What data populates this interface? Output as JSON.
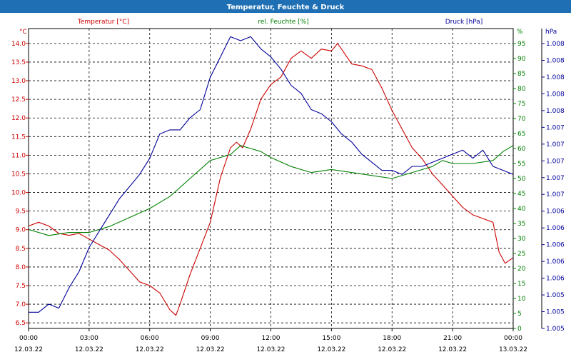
{
  "window": {
    "title": "Temperatur, Feuchte & Druck"
  },
  "colors": {
    "temperature": "#cc0000",
    "humidity": "#008000",
    "pressure": "#000099",
    "title_bar": "#1f6fb4"
  },
  "chart_data": {
    "type": "line",
    "title": "Temperatur, Feuchte & Druck",
    "grid": true,
    "x_range": [
      "12.03.22 00:00",
      "13.03.22 00:00"
    ],
    "x_ticks": [
      {
        "time": "00:00",
        "date": "12.03.22"
      },
      {
        "time": "03:00",
        "date": "12.03.22"
      },
      {
        "time": "06:00",
        "date": "12.03.22"
      },
      {
        "time": "09:00",
        "date": "12.03.22"
      },
      {
        "time": "12:00",
        "date": "12.03.22"
      },
      {
        "time": "15:00",
        "date": "12.03.22"
      },
      {
        "time": "18:00",
        "date": "12.03.22"
      },
      {
        "time": "21:00",
        "date": "12.03.22"
      },
      {
        "time": "00:00",
        "date": "13.03.22"
      }
    ],
    "axes": {
      "temperature": {
        "label": "Temperatur [°C]",
        "unit": "°C",
        "range": [
          6.35,
          14.4
        ],
        "ticks": [
          "14.0",
          "13.5",
          "13.0",
          "12.5",
          "12.0",
          "11.5",
          "11.0",
          "10.5",
          "10.0",
          "9.5",
          "9.0",
          "8.5",
          "8.0",
          "7.5",
          "7.0",
          "6.5"
        ]
      },
      "humidity": {
        "label": "rel. Feuchte [%]",
        "unit": "%",
        "range": [
          0,
          100
        ],
        "ticks": [
          "95",
          "90",
          "85",
          "80",
          "75",
          "70",
          "65",
          "60",
          "55",
          "50",
          "45",
          "40",
          "35",
          "30",
          "25",
          "20",
          "15",
          "10",
          "5",
          "0"
        ]
      },
      "pressure": {
        "label": "Druck [hPa]",
        "unit": "hPa",
        "range": [
          1005.0,
          1008.7
        ],
        "ticks": [
          "1.008",
          "1.008",
          "1.008",
          "1.008",
          "1.008",
          "1.007",
          "1.007",
          "1.007",
          "1.007",
          "1.007",
          "1.006",
          "1.006",
          "1.006",
          "1.006",
          "1.006",
          "1.005",
          "1.005",
          "1.005"
        ]
      }
    },
    "series": [
      {
        "name": "Temperatur [°C]",
        "axis": "temperature",
        "x": [
          0,
          0.5,
          1.0,
          1.5,
          2.0,
          2.5,
          3.0,
          3.5,
          4.0,
          4.5,
          5.0,
          5.5,
          6.0,
          6.5,
          7.0,
          7.3,
          7.5,
          8.0,
          8.5,
          9.0,
          9.5,
          10.0,
          10.3,
          10.6,
          11.0,
          11.5,
          12.0,
          12.5,
          13.0,
          13.5,
          14.0,
          14.5,
          15.0,
          15.3,
          15.5,
          16.0,
          16.5,
          17.0,
          17.5,
          18.0,
          18.5,
          19.0,
          19.5,
          20.0,
          20.5,
          21.0,
          21.5,
          22.0,
          22.5,
          23.0,
          23.3,
          23.6,
          24.0
        ],
        "y": [
          9.1,
          9.2,
          9.1,
          8.9,
          8.85,
          8.9,
          8.75,
          8.6,
          8.45,
          8.2,
          7.9,
          7.6,
          7.5,
          7.3,
          6.85,
          6.7,
          7.0,
          7.8,
          8.5,
          9.2,
          10.4,
          11.2,
          11.35,
          11.2,
          11.7,
          12.5,
          12.9,
          13.1,
          13.6,
          13.8,
          13.6,
          13.85,
          13.8,
          14.0,
          13.85,
          13.45,
          13.4,
          13.3,
          12.8,
          12.2,
          11.7,
          11.2,
          10.9,
          10.5,
          10.2,
          9.9,
          9.6,
          9.4,
          9.3,
          9.2,
          8.4,
          8.1,
          8.25
        ]
      },
      {
        "name": "rel. Feuchte [%]",
        "axis": "humidity",
        "x": [
          0,
          1,
          2,
          3,
          4,
          5,
          6,
          7,
          8,
          9,
          10,
          10.5,
          11,
          11.5,
          12,
          13,
          14,
          15,
          16,
          17,
          18,
          19,
          20,
          20.5,
          21,
          22,
          23,
          23.5,
          24
        ],
        "y": [
          33,
          31,
          32,
          32,
          34,
          37,
          40,
          44,
          50,
          56,
          58,
          61,
          60,
          59,
          57,
          54,
          52,
          53,
          52,
          51,
          50,
          52,
          54,
          56,
          55,
          55,
          56,
          59,
          61
        ]
      },
      {
        "name": "Druck [hPa]",
        "axis": "pressure",
        "x": [
          0,
          0.5,
          1.0,
          1.5,
          2.0,
          2.5,
          3.0,
          3.5,
          4.0,
          4.5,
          5.0,
          5.5,
          6.0,
          6.5,
          7.0,
          7.5,
          8.0,
          8.5,
          9.0,
          9.5,
          10.0,
          10.5,
          11.0,
          11.5,
          12.0,
          12.5,
          13.0,
          13.5,
          14.0,
          14.5,
          15.0,
          15.5,
          16.0,
          16.5,
          17.0,
          17.5,
          18.0,
          18.5,
          19.0,
          19.5,
          20.0,
          20.5,
          21.0,
          21.5,
          22.0,
          22.5,
          23.0,
          23.5,
          24.0
        ],
        "y": [
          1005.2,
          1005.2,
          1005.3,
          1005.25,
          1005.5,
          1005.7,
          1006.0,
          1006.2,
          1006.4,
          1006.6,
          1006.75,
          1006.9,
          1007.1,
          1007.4,
          1007.45,
          1007.45,
          1007.6,
          1007.7,
          1008.1,
          1008.35,
          1008.6,
          1008.55,
          1008.6,
          1008.45,
          1008.35,
          1008.2,
          1008.0,
          1007.9,
          1007.7,
          1007.65,
          1007.55,
          1007.4,
          1007.3,
          1007.15,
          1007.05,
          1006.95,
          1006.95,
          1006.9,
          1007.0,
          1007.0,
          1007.05,
          1007.1,
          1007.15,
          1007.2,
          1007.1,
          1007.2,
          1007.0,
          1006.95,
          1006.9
        ]
      }
    ]
  }
}
